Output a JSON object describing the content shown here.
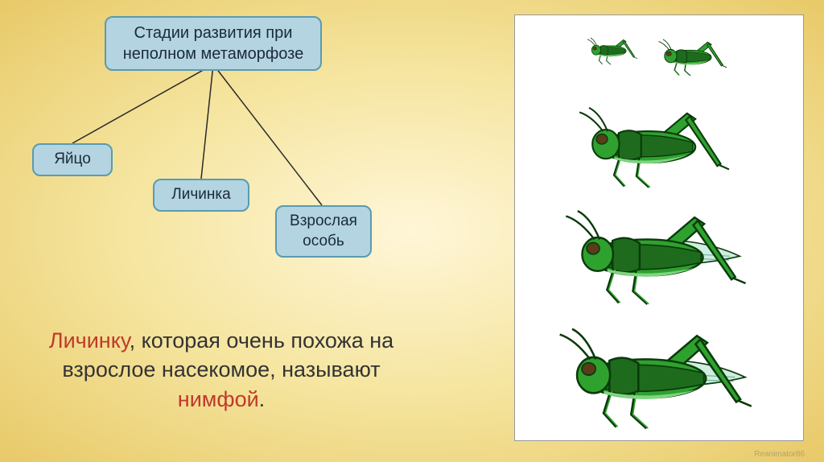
{
  "diagram": {
    "type": "tree",
    "root": {
      "label": "Стадии развития при\nнеполном метаморфозе"
    },
    "children": {
      "egg": {
        "label": "Яйцо"
      },
      "larva": {
        "label": "Личинка"
      },
      "adult": {
        "label": "Взрослая особь"
      }
    },
    "box_fill": "#b3d4e0",
    "box_border": "#5a9bb0",
    "box_radius": 10,
    "connector_color": "#2a2a2a",
    "connector_width": 1.5,
    "font_family": "Arial",
    "font_size_root": 20,
    "font_size_child": 19
  },
  "caption": {
    "pre": "Личинку",
    "mid": ",  которая очень похожа  на взрослое насекомое, называют ",
    "post": "нимфой",
    "tail": ".",
    "accent_color": "#c0392b",
    "text_color": "#333333",
    "font_size": 27
  },
  "illustration": {
    "panel_bg": "#ffffff",
    "panel_border": "#999999",
    "insect_colors": {
      "body_dark": "#1e6b1e",
      "body_mid": "#2fa12f",
      "body_light": "#7ed67e",
      "wing": "#cfeee0",
      "eye": "#5a3b1a",
      "outline": "#0a3a0a"
    },
    "stages": [
      {
        "scale": 0.28,
        "has_wings": false
      },
      {
        "scale": 0.38,
        "has_wings": false
      },
      {
        "scale": 0.72,
        "has_wings": false
      },
      {
        "scale": 0.88,
        "has_wings": true
      },
      {
        "scale": 1.0,
        "has_wings": true
      }
    ]
  },
  "background": {
    "gradient_center": "#fff6d8",
    "gradient_mid": "#f5e59f",
    "gradient_edge": "#e8c968"
  },
  "watermark": "Reanimator86"
}
